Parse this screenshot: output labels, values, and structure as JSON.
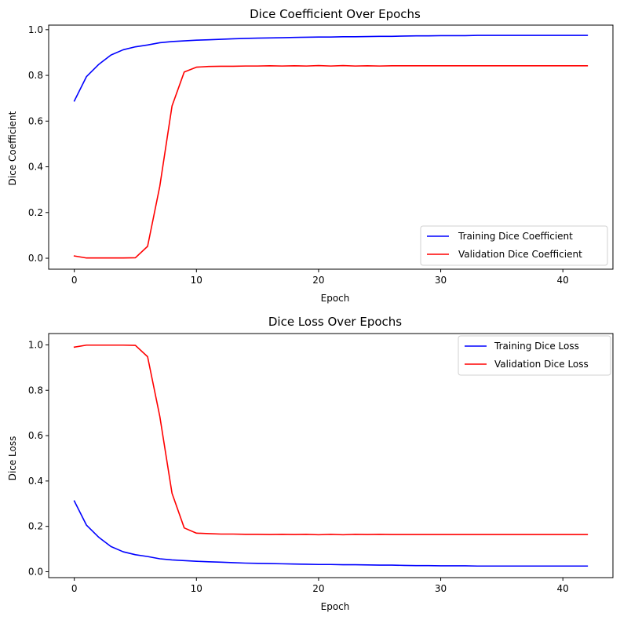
{
  "chart_data": [
    {
      "type": "line",
      "title": "Dice Coefficient Over Epochs",
      "xlabel": "Epoch",
      "ylabel": "Dice Coefficient",
      "xlim": [
        -2.1,
        44.1
      ],
      "ylim": [
        -0.048,
        1.02
      ],
      "xticks": [
        0,
        10,
        20,
        30,
        40
      ],
      "yticks": [
        0.0,
        0.2,
        0.4,
        0.6,
        0.8,
        1.0
      ],
      "legend_position": "lower-right",
      "grid": false,
      "x": [
        0,
        1,
        2,
        3,
        4,
        5,
        6,
        7,
        8,
        9,
        10,
        11,
        12,
        13,
        14,
        15,
        16,
        17,
        18,
        19,
        20,
        21,
        22,
        23,
        24,
        25,
        26,
        27,
        28,
        29,
        30,
        31,
        32,
        33,
        34,
        35,
        36,
        37,
        38,
        39,
        40,
        41,
        42
      ],
      "series": [
        {
          "name": "Training Dice Coefficient",
          "color": "#0000ff",
          "values": [
            0.688,
            0.795,
            0.848,
            0.889,
            0.912,
            0.925,
            0.933,
            0.943,
            0.948,
            0.951,
            0.954,
            0.956,
            0.958,
            0.96,
            0.962,
            0.963,
            0.964,
            0.965,
            0.966,
            0.967,
            0.968,
            0.968,
            0.969,
            0.969,
            0.97,
            0.971,
            0.971,
            0.972,
            0.973,
            0.973,
            0.974,
            0.974,
            0.974,
            0.975,
            0.975,
            0.975,
            0.975,
            0.975,
            0.975,
            0.975,
            0.975,
            0.975,
            0.975
          ]
        },
        {
          "name": "Validation Dice Coefficient",
          "color": "#ff0000",
          "values": [
            0.01,
            0.001,
            0.001,
            0.001,
            0.001,
            0.002,
            0.052,
            0.315,
            0.666,
            0.815,
            0.836,
            0.839,
            0.84,
            0.84,
            0.841,
            0.841,
            0.842,
            0.841,
            0.842,
            0.841,
            0.843,
            0.841,
            0.843,
            0.841,
            0.842,
            0.841,
            0.842,
            0.842,
            0.842,
            0.842,
            0.842,
            0.842,
            0.842,
            0.842,
            0.842,
            0.842,
            0.842,
            0.842,
            0.842,
            0.842,
            0.842,
            0.842,
            0.842
          ]
        }
      ]
    },
    {
      "type": "line",
      "title": "Dice Loss Over Epochs",
      "xlabel": "Epoch",
      "ylabel": "Dice Loss",
      "xlim": [
        -2.1,
        44.1
      ],
      "ylim": [
        -0.026,
        1.05
      ],
      "xticks": [
        0,
        10,
        20,
        30,
        40
      ],
      "yticks": [
        0.0,
        0.2,
        0.4,
        0.6,
        0.8,
        1.0
      ],
      "legend_position": "top-right",
      "grid": false,
      "x": [
        0,
        1,
        2,
        3,
        4,
        5,
        6,
        7,
        8,
        9,
        10,
        11,
        12,
        13,
        14,
        15,
        16,
        17,
        18,
        19,
        20,
        21,
        22,
        23,
        24,
        25,
        26,
        27,
        28,
        29,
        30,
        31,
        32,
        33,
        34,
        35,
        36,
        37,
        38,
        39,
        40,
        41,
        42
      ],
      "series": [
        {
          "name": "Training Dice Loss",
          "color": "#0000ff",
          "values": [
            0.312,
            0.205,
            0.152,
            0.111,
            0.088,
            0.075,
            0.067,
            0.057,
            0.052,
            0.049,
            0.046,
            0.044,
            0.042,
            0.04,
            0.038,
            0.037,
            0.036,
            0.035,
            0.034,
            0.033,
            0.032,
            0.032,
            0.031,
            0.031,
            0.03,
            0.029,
            0.029,
            0.028,
            0.027,
            0.027,
            0.026,
            0.026,
            0.026,
            0.025,
            0.025,
            0.025,
            0.025,
            0.025,
            0.025,
            0.025,
            0.025,
            0.025,
            0.025
          ]
        },
        {
          "name": "Validation Dice Loss",
          "color": "#ff0000",
          "values": [
            0.99,
            0.999,
            0.999,
            0.999,
            0.999,
            0.998,
            0.948,
            0.685,
            0.346,
            0.193,
            0.17,
            0.168,
            0.166,
            0.166,
            0.165,
            0.165,
            0.164,
            0.165,
            0.164,
            0.165,
            0.163,
            0.165,
            0.163,
            0.165,
            0.164,
            0.165,
            0.164,
            0.164,
            0.164,
            0.164,
            0.164,
            0.164,
            0.164,
            0.164,
            0.164,
            0.164,
            0.164,
            0.164,
            0.164,
            0.164,
            0.164,
            0.164,
            0.164
          ]
        }
      ]
    }
  ]
}
